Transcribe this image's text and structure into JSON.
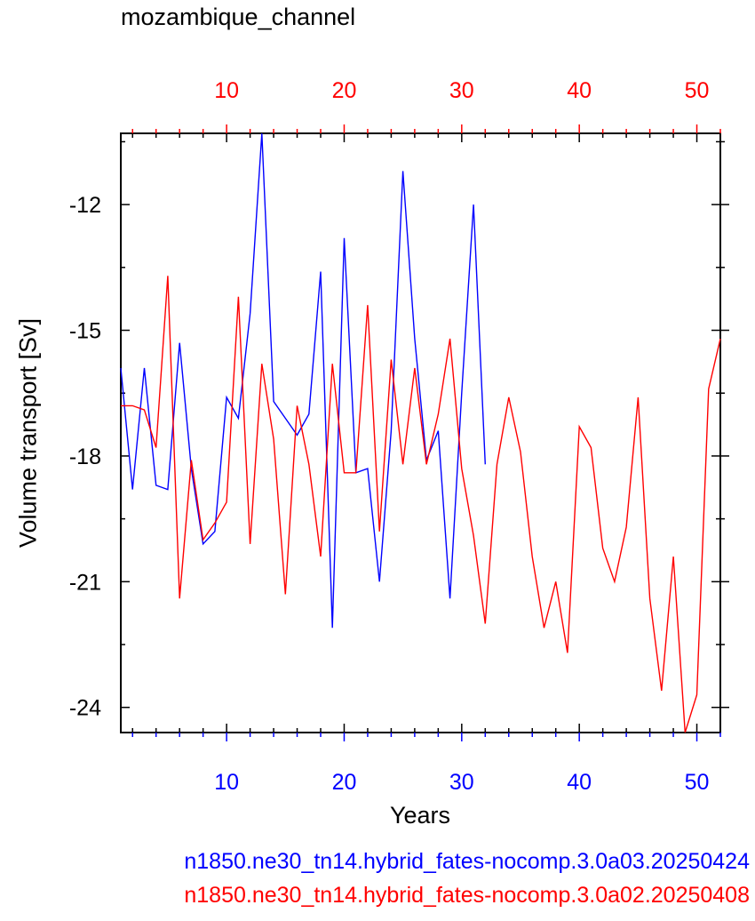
{
  "chart_data": {
    "type": "line",
    "title": "mozambique_channel",
    "xlabel": "Years",
    "ylabel": "Volume transport [Sv]",
    "xlim": [
      1,
      52
    ],
    "ylim": [
      -24.6,
      -10.3
    ],
    "yticks": [
      -12,
      -15,
      -18,
      -21,
      -24
    ],
    "bottom_xticks": [
      10,
      20,
      30,
      40,
      50
    ],
    "top_xticks": [
      10,
      20,
      30,
      40,
      50
    ],
    "colors": {
      "bottom_axis": "#0000ff",
      "top_axis": "#ff0000"
    },
    "series": [
      {
        "name": "n1850.ne30_tn14.hybrid_fates-nocomp.3.0a03.20250424",
        "color": "#0000ff",
        "axis": "bottom",
        "x": [
          1,
          2,
          3,
          4,
          5,
          6,
          7,
          8,
          9,
          10,
          11,
          12,
          13,
          14,
          15,
          16,
          17,
          18,
          19,
          20,
          21,
          22,
          23,
          24,
          25,
          26,
          27,
          28,
          29,
          30,
          31,
          32
        ],
        "y": [
          -15.9,
          -18.8,
          -15.9,
          -18.7,
          -18.8,
          -15.3,
          -18.3,
          -20.1,
          -19.8,
          -16.6,
          -17.1,
          -14.6,
          -10.3,
          -16.7,
          -17.1,
          -17.5,
          -17.0,
          -13.6,
          -22.1,
          -12.8,
          -18.4,
          -18.3,
          -21.0,
          -17.4,
          -11.2,
          -15.2,
          -18.1,
          -17.4,
          -21.4,
          -16.5,
          -12.0,
          -18.2
        ]
      },
      {
        "name": "n1850.ne30_tn14.hybrid_fates-nocomp.3.0a02.20250408",
        "color": "#ff0000",
        "axis": "top",
        "x": [
          1,
          2,
          3,
          4,
          5,
          6,
          7,
          8,
          9,
          10,
          11,
          12,
          13,
          14,
          15,
          16,
          17,
          18,
          19,
          20,
          21,
          22,
          23,
          24,
          25,
          26,
          27,
          28,
          29,
          30,
          31,
          32,
          33,
          34,
          35,
          36,
          37,
          38,
          39,
          40,
          41,
          42,
          43,
          44,
          45,
          46,
          47,
          48,
          49,
          50,
          51,
          52
        ],
        "y": [
          -16.8,
          -16.8,
          -16.9,
          -17.8,
          -13.7,
          -21.4,
          -18.1,
          -20.0,
          -19.6,
          -19.1,
          -14.2,
          -20.1,
          -15.8,
          -17.6,
          -21.3,
          -16.8,
          -18.2,
          -20.4,
          -15.8,
          -18.4,
          -18.4,
          -14.4,
          -19.8,
          -15.7,
          -18.2,
          -15.9,
          -18.2,
          -17.0,
          -15.2,
          -18.3,
          -19.9,
          -22.0,
          -18.2,
          -16.6,
          -17.9,
          -20.4,
          -22.1,
          -21.0,
          -22.7,
          -17.3,
          -17.8,
          -20.2,
          -21.0,
          -19.7,
          -16.6,
          -21.4,
          -23.6,
          -20.4,
          -24.6,
          -23.7,
          -16.4,
          -15.2
        ]
      }
    ]
  }
}
